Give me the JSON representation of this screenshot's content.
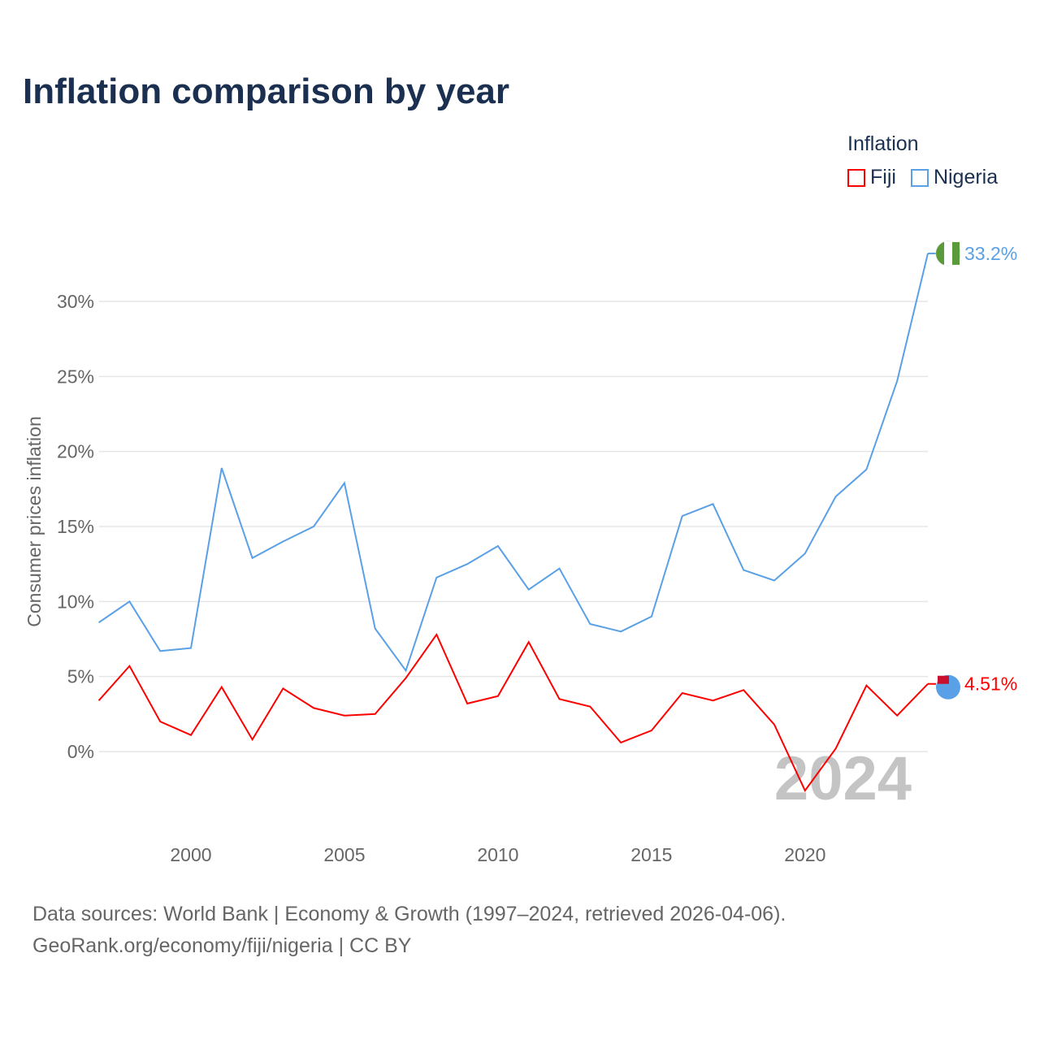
{
  "title": "Inflation comparison by year",
  "legend": {
    "title": "Inflation",
    "items": [
      {
        "name": "Fiji",
        "color": "#ff0000"
      },
      {
        "name": "Nigeria",
        "color": "#5aa0e6"
      }
    ]
  },
  "source": {
    "line1": "Data sources: World Bank | Economy & Growth (1997–2024, retrieved 2026-04-06).",
    "line2": "GeoRank.org/economy/fiji/nigeria | CC BY"
  },
  "chart_data": {
    "type": "line",
    "title": "Inflation comparison by year",
    "xlabel": "",
    "ylabel": "Consumer prices inflation",
    "x": [
      1997,
      1998,
      1999,
      2000,
      2001,
      2002,
      2003,
      2004,
      2005,
      2006,
      2007,
      2008,
      2009,
      2010,
      2011,
      2012,
      2013,
      2014,
      2015,
      2016,
      2017,
      2018,
      2019,
      2020,
      2021,
      2022,
      2023,
      2024
    ],
    "xlim": [
      1997,
      2024
    ],
    "ylim": [
      -5,
      33.2
    ],
    "xticks": [
      2000,
      2005,
      2010,
      2015,
      2020
    ],
    "yticks": [
      0,
      5,
      10,
      15,
      20,
      25,
      30
    ],
    "ytick_labels": [
      "0%",
      "5%",
      "10%",
      "15%",
      "20%",
      "25%",
      "30%"
    ],
    "grid": true,
    "legend_position": "top-right",
    "year_watermark": "2024",
    "series": [
      {
        "name": "Fiji",
        "color": "#ff0000",
        "end_label": "4.51%",
        "values": [
          3.4,
          5.7,
          2.0,
          1.1,
          4.3,
          0.8,
          4.2,
          2.9,
          2.4,
          2.5,
          4.9,
          7.8,
          3.2,
          3.7,
          7.3,
          3.5,
          3.0,
          0.6,
          1.4,
          3.9,
          3.4,
          4.1,
          1.8,
          -2.6,
          0.2,
          4.4,
          2.4,
          4.51
        ]
      },
      {
        "name": "Nigeria",
        "color": "#5aa0e6",
        "end_label": "33.2%",
        "values": [
          8.6,
          10.0,
          6.7,
          6.9,
          18.9,
          12.9,
          14.0,
          15.0,
          17.9,
          8.2,
          5.4,
          11.6,
          12.5,
          13.7,
          10.8,
          12.2,
          8.5,
          8.0,
          9.0,
          15.7,
          16.5,
          12.1,
          11.4,
          13.2,
          17.0,
          18.8,
          24.7,
          33.2
        ]
      }
    ]
  }
}
